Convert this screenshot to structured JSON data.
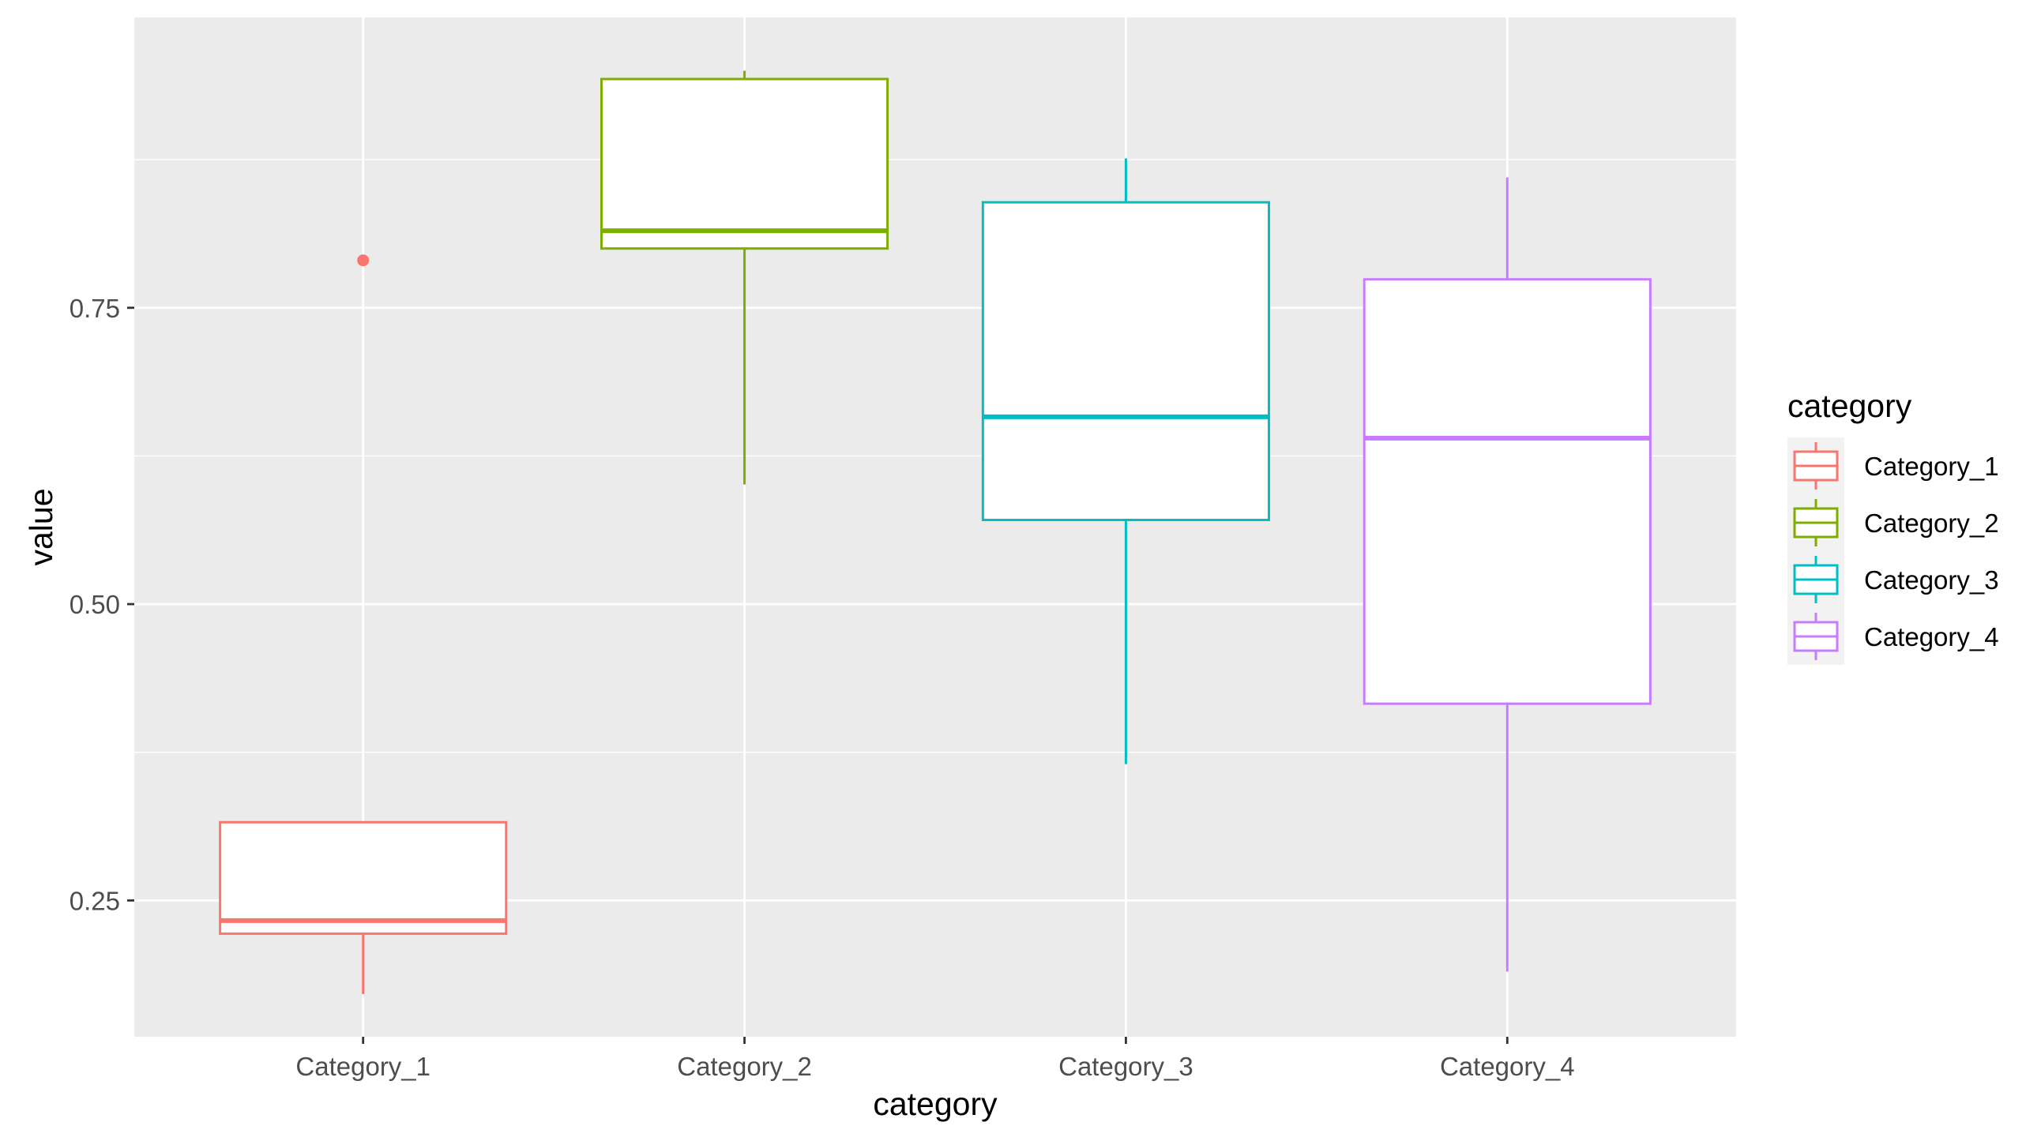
{
  "chart_data": {
    "type": "box",
    "xlabel": "category",
    "ylabel": "value",
    "ylim": [
      0.135,
      0.995
    ],
    "y_ticks": [
      0.25,
      0.5,
      0.75
    ],
    "y_tick_labels": [
      "0.25",
      "0.50",
      "0.75"
    ],
    "grid": true,
    "legend": {
      "title": "category",
      "position": "right"
    },
    "categories": [
      "Category_1",
      "Category_2",
      "Category_3",
      "Category_4"
    ],
    "colors": [
      "#F8766D",
      "#7CAE00",
      "#00BFC4",
      "#C77CFF"
    ],
    "boxes": [
      {
        "name": "Category_1",
        "whisker_low": 0.171,
        "q1": 0.222,
        "median": 0.233,
        "q3": 0.316,
        "whisker_high": 0.316,
        "outliers": [
          0.79
        ]
      },
      {
        "name": "Category_2",
        "whisker_low": 0.601,
        "q1": 0.8,
        "median": 0.815,
        "q3": 0.943,
        "whisker_high": 0.95,
        "outliers": []
      },
      {
        "name": "Category_3",
        "whisker_low": 0.365,
        "q1": 0.571,
        "median": 0.658,
        "q3": 0.839,
        "whisker_high": 0.876,
        "outliers": []
      },
      {
        "name": "Category_4",
        "whisker_low": 0.19,
        "q1": 0.416,
        "median": 0.64,
        "q3": 0.774,
        "whisker_high": 0.86,
        "outliers": []
      }
    ]
  }
}
